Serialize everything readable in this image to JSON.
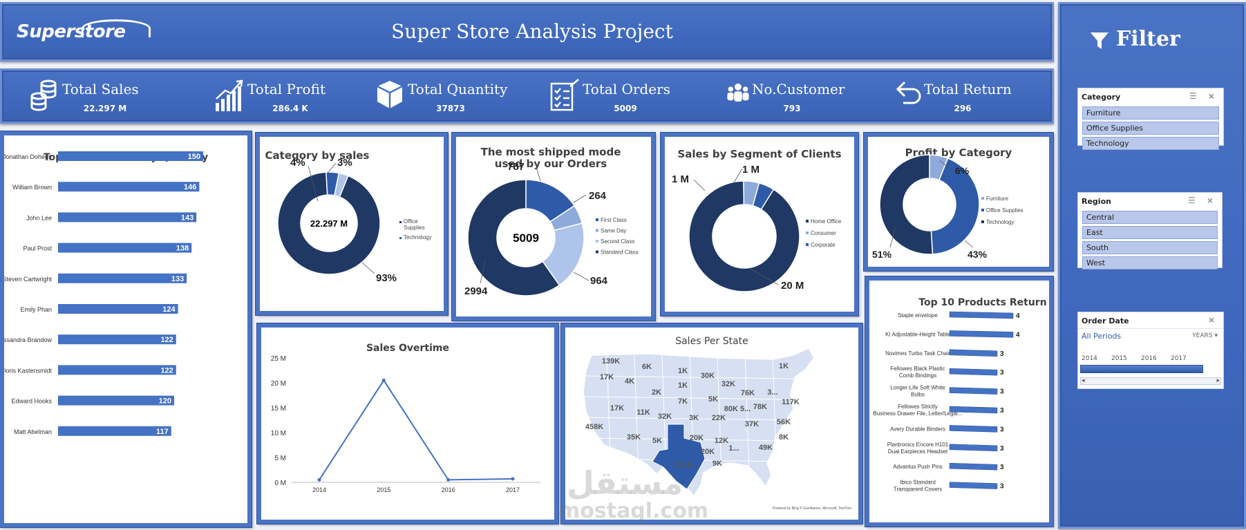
{
  "header": {
    "logo": "Superstore",
    "title": "Super Store Analysis Project"
  },
  "kpis": [
    {
      "label": "Total Sales",
      "value": "22.297 M",
      "icon": "coins-icon"
    },
    {
      "label": "Total Profit",
      "value": "286.4 K",
      "icon": "growth-chart-icon"
    },
    {
      "label": "Total Quantity",
      "value": "37873",
      "icon": "box-icon"
    },
    {
      "label": "Total Orders",
      "value": "5009",
      "icon": "checklist-icon"
    },
    {
      "label": "No.Customer",
      "value": "793",
      "icon": "people-icon"
    },
    {
      "label": "Total Return",
      "value": "296",
      "icon": "return-arrow-icon"
    }
  ],
  "filter": {
    "title": "Filter",
    "category": {
      "header": "Category",
      "items": [
        "Furniture",
        "Office Supplies",
        "Technology"
      ]
    },
    "region": {
      "header": "Region",
      "items": [
        "Central",
        "East",
        "South",
        "West"
      ]
    },
    "order_date": {
      "header": "Order Date",
      "period": "All Periods",
      "granularity": "YEARS",
      "years": [
        "2014",
        "2015",
        "2016",
        "2017"
      ]
    }
  },
  "colors": {
    "dark": "#1f3864",
    "mid": "#2e5aa8",
    "light": "#aec4ea",
    "pale": "#8eaadb",
    "accent": "#4472c4",
    "header_bg": "#4472c4"
  },
  "chart_data": [
    {
      "id": "top10-customers",
      "type": "bar",
      "title": "Top 10 Customers by Quantity",
      "categories": [
        "Jonathan Doherty",
        "William Brown",
        "John Lee",
        "Paul Prost",
        "Steven Cartwright",
        "Emily Phan",
        "Cassandra Brandow",
        "Chloris Kastensmidt",
        "Edward Hooks",
        "Matt Abelman"
      ],
      "values": [
        150,
        146,
        143,
        138,
        133,
        124,
        122,
        122,
        120,
        117
      ]
    },
    {
      "id": "category-by-sales",
      "type": "pie",
      "title": "Category by sales",
      "center_label": "22.297 M",
      "slices": [
        {
          "name": "Office Supplies",
          "value": 93,
          "label": "93%"
        },
        {
          "name": "Technology",
          "value": 4,
          "label": "4%"
        },
        {
          "name": "",
          "value": 3,
          "label": "3%"
        }
      ],
      "legend": [
        "Office Supplies",
        "Technology"
      ]
    },
    {
      "id": "ship-mode",
      "type": "pie",
      "title": "The most shipped mode used by our Orders",
      "center_label": "5009",
      "slices": [
        {
          "name": "First Class",
          "value": 787,
          "label": "787"
        },
        {
          "name": "Same Day",
          "value": 264,
          "label": "264"
        },
        {
          "name": "Second Class",
          "value": 964,
          "label": "964"
        },
        {
          "name": "Standard Class",
          "value": 2994,
          "label": "2994"
        }
      ]
    },
    {
      "id": "segment-sales",
      "type": "pie",
      "title": "Sales by Segment of Clients",
      "slices": [
        {
          "name": "Home Office",
          "value": 20,
          "label": "20 M"
        },
        {
          "name": "Consumer",
          "value": 1,
          "label": "1 M"
        },
        {
          "name": "Corporate",
          "value": 1,
          "label": "1 M"
        }
      ]
    },
    {
      "id": "profit-by-category",
      "type": "pie",
      "title": "Profit by Category",
      "slices": [
        {
          "name": "Furniture",
          "value": 6,
          "label": "6%"
        },
        {
          "name": "Office Supplies",
          "value": 43,
          "label": "43%"
        },
        {
          "name": "Technology",
          "value": 51,
          "label": "51%"
        }
      ]
    },
    {
      "id": "sales-overtime",
      "type": "line",
      "title": "Sales Overtime",
      "x": [
        "2014",
        "2015",
        "2016",
        "2017"
      ],
      "values": [
        0.5,
        20.5,
        0.5,
        0.7
      ],
      "yticks": [
        "0 M",
        "5 M",
        "10 M",
        "15 M",
        "20 M",
        "25 M"
      ],
      "ylim": [
        0,
        25
      ]
    },
    {
      "id": "sales-per-state",
      "type": "map",
      "title": "Sales Per State",
      "labels": [
        "139K",
        "6K",
        "1K",
        "1K",
        "17K",
        "4K",
        "30K",
        "32K",
        "1K",
        "2K",
        "7K",
        "5K",
        "76K",
        "3...",
        "117K",
        "17K",
        "11K",
        "32K",
        "3K",
        "22K",
        "80K 5...",
        "78K",
        "458K",
        "37K",
        "56K",
        "35K",
        "5K",
        "20K",
        "12K",
        "8K",
        "1...",
        "20K",
        "49K",
        "9K",
        "1010..."
      ],
      "credit": "Powered by Bing © GeoNames, Microsoft, TomTom"
    },
    {
      "id": "top10-products-return",
      "type": "bar",
      "title": "Top 10 Products Return",
      "categories": [
        "Staple envelope",
        "KI Adjustable-Height Table",
        "Novimex Turbo Task Chair",
        "Fellowes Black Plastic Comb Bindings",
        "Longer-Life Soft White Bulbs",
        "Fellowes Strictly Business Drawer File, Letter/Legal...",
        "Avery Durable Binders",
        "Plantronics Encore H101 Dual Earpieces Headset",
        "Advantus Push Pins",
        "Ibico Standard Transparent Covers"
      ],
      "values": [
        4,
        4,
        3,
        3,
        3,
        3,
        3,
        3,
        3,
        3
      ]
    }
  ],
  "watermark": {
    "line1": "مستقل",
    "line2": "mostaql.com"
  }
}
